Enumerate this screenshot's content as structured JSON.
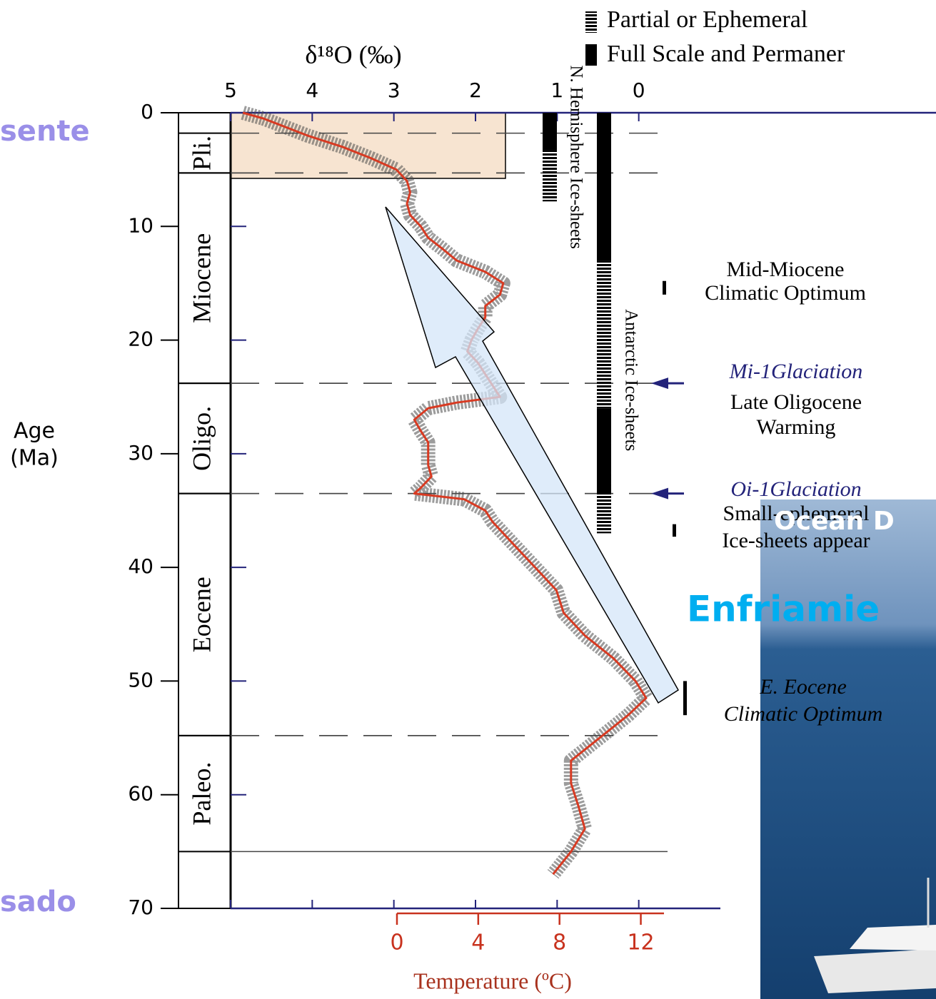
{
  "chart_data": {
    "type": "line",
    "x_label": "δ¹⁸O (‰)",
    "y_label": "Age (Ma)",
    "x2_label": "Temperature (ºC)",
    "y": [
      0,
      0.5,
      2,
      3,
      4,
      5,
      6,
      7,
      8,
      9,
      10,
      11,
      12,
      13,
      14,
      15,
      16,
      17,
      18,
      19,
      20,
      21,
      22,
      23,
      24,
      25,
      25.5,
      26,
      27,
      28,
      29,
      30,
      31,
      32,
      33,
      33.5,
      34,
      35,
      36,
      38,
      40,
      42,
      44,
      46,
      48,
      50,
      51.5,
      53,
      55,
      57,
      59,
      61,
      63,
      65,
      67
    ],
    "series": [
      {
        "color": "#d83a22",
        "values": [
          4.85,
          4.6,
          4.06,
          3.63,
          3.28,
          2.97,
          2.84,
          2.8,
          2.84,
          2.8,
          2.67,
          2.58,
          2.4,
          2.23,
          1.88,
          1.66,
          1.7,
          1.88,
          1.88,
          1.97,
          2.05,
          2.1,
          1.97,
          1.88,
          1.79,
          1.7,
          2.23,
          2.58,
          2.75,
          2.67,
          2.58,
          2.58,
          2.58,
          2.54,
          2.67,
          2.75,
          2.14,
          1.88,
          1.79,
          1.53,
          1.27,
          1.01,
          0.92,
          0.66,
          0.31,
          0.04,
          -0.09,
          0.13,
          0.48,
          0.83,
          0.83,
          0.74,
          0.66,
          0.83,
          1.05
        ]
      }
    ],
    "xlim": [
      5,
      -1
    ],
    "xticks": [
      5,
      4,
      3,
      2,
      1,
      0
    ],
    "ylim": [
      0,
      70
    ],
    "yticks": [
      0,
      10,
      20,
      30,
      40,
      50,
      60,
      70
    ],
    "x2lim": [
      0,
      13
    ],
    "x2ticks": [
      0,
      4,
      8,
      12
    ],
    "epochs": [
      {
        "label": "Pli.",
        "start": 1.8,
        "end": 5.3
      },
      {
        "label": "Miocene",
        "start": 5.3,
        "end": 23.8
      },
      {
        "label": "Oligo.",
        "start": 23.8,
        "end": 33.5
      },
      {
        "label": "Eocene",
        "start": 33.5,
        "end": 54.8
      },
      {
        "label": "Paleo.",
        "start": 54.8,
        "end": 65
      }
    ],
    "ice_sheets": [
      {
        "label": "N. Hemisphere Ice-sheets",
        "full": [
          [
            0,
            3.3
          ]
        ],
        "partial": [
          [
            3.3,
            7.8
          ]
        ]
      },
      {
        "label": "Antarctic Ice-sheets",
        "full": [
          [
            0,
            13
          ],
          [
            26,
            33.5
          ]
        ],
        "partial": [
          [
            13,
            26
          ],
          [
            33.5,
            37
          ]
        ]
      }
    ],
    "legend": {
      "partial": "Partial or Ephemeral",
      "full": "Full Scale and Permaner"
    },
    "annotations": [
      {
        "lines": [
          "Mid-Miocene",
          "Climatic Optimum"
        ],
        "range": [
          14.8,
          16
        ]
      },
      {
        "title": "Mi-1Glaciation",
        "lines": [
          "Late Oligocene",
          "Warming"
        ],
        "age": 23.8
      },
      {
        "title": "Oi-1Glaciation",
        "lines": [
          "Small-ephemeral",
          "Ice-sheets appear"
        ],
        "age": 33.5,
        "range": [
          36.2,
          37.3
        ]
      },
      {
        "lines": [
          "E. Eocene",
          "Climatic Optimum"
        ],
        "range": [
          50,
          53
        ]
      }
    ]
  },
  "slide": {
    "present": "sente",
    "past": "sado",
    "cooling": "Enfriamie",
    "photo_caption": "Ocean D"
  }
}
